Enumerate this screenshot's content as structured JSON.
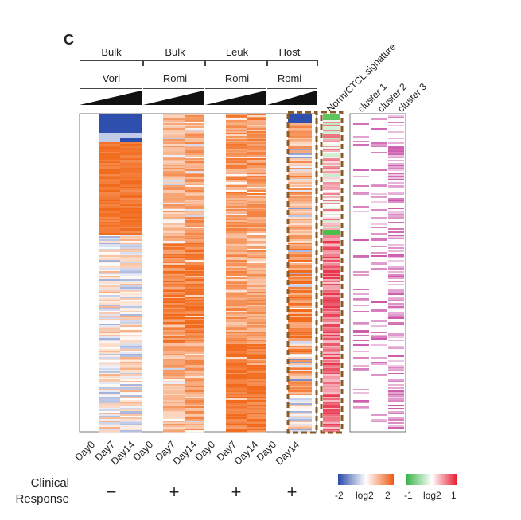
{
  "panel_letter": "C",
  "groups": [
    {
      "top": "Bulk",
      "bottom": "Vori"
    },
    {
      "top": "Bulk",
      "bottom": "Romi"
    },
    {
      "top": "Leuk",
      "bottom": "Romi"
    },
    {
      "top": "Host",
      "bottom": "Romi"
    }
  ],
  "signature_labels": [
    "Norm/CTCL signature",
    "cluster 1",
    "cluster 2",
    "cluster 3"
  ],
  "day_labels": [
    "Day0",
    "Day7",
    "Day14",
    "Day0",
    "Day7",
    "Day14",
    "Day0",
    "Day7",
    "Day14",
    "Day0",
    "Day14"
  ],
  "clinical_response": {
    "label_line1": "Clinical",
    "label_line2": "Response",
    "values": [
      "−",
      "+",
      "+",
      "+"
    ]
  },
  "legend_left": {
    "min": "-2",
    "unit": "log2",
    "max": "2",
    "colors": [
      "#2b4aa8",
      "#ffffff",
      "#f05a14"
    ]
  },
  "legend_right": {
    "min": "-1",
    "unit": "log2",
    "max": "1",
    "colors": [
      "#3ab54a",
      "#ffffff",
      "#e8192c"
    ]
  },
  "colors": {
    "up": "#f26a1b",
    "down": "#2f4fae",
    "sig_pos": "#e8324a",
    "sig_neg": "#4bbf4a",
    "cluster": "#c23a9c",
    "highlight_box": "#8a5a22"
  }
}
